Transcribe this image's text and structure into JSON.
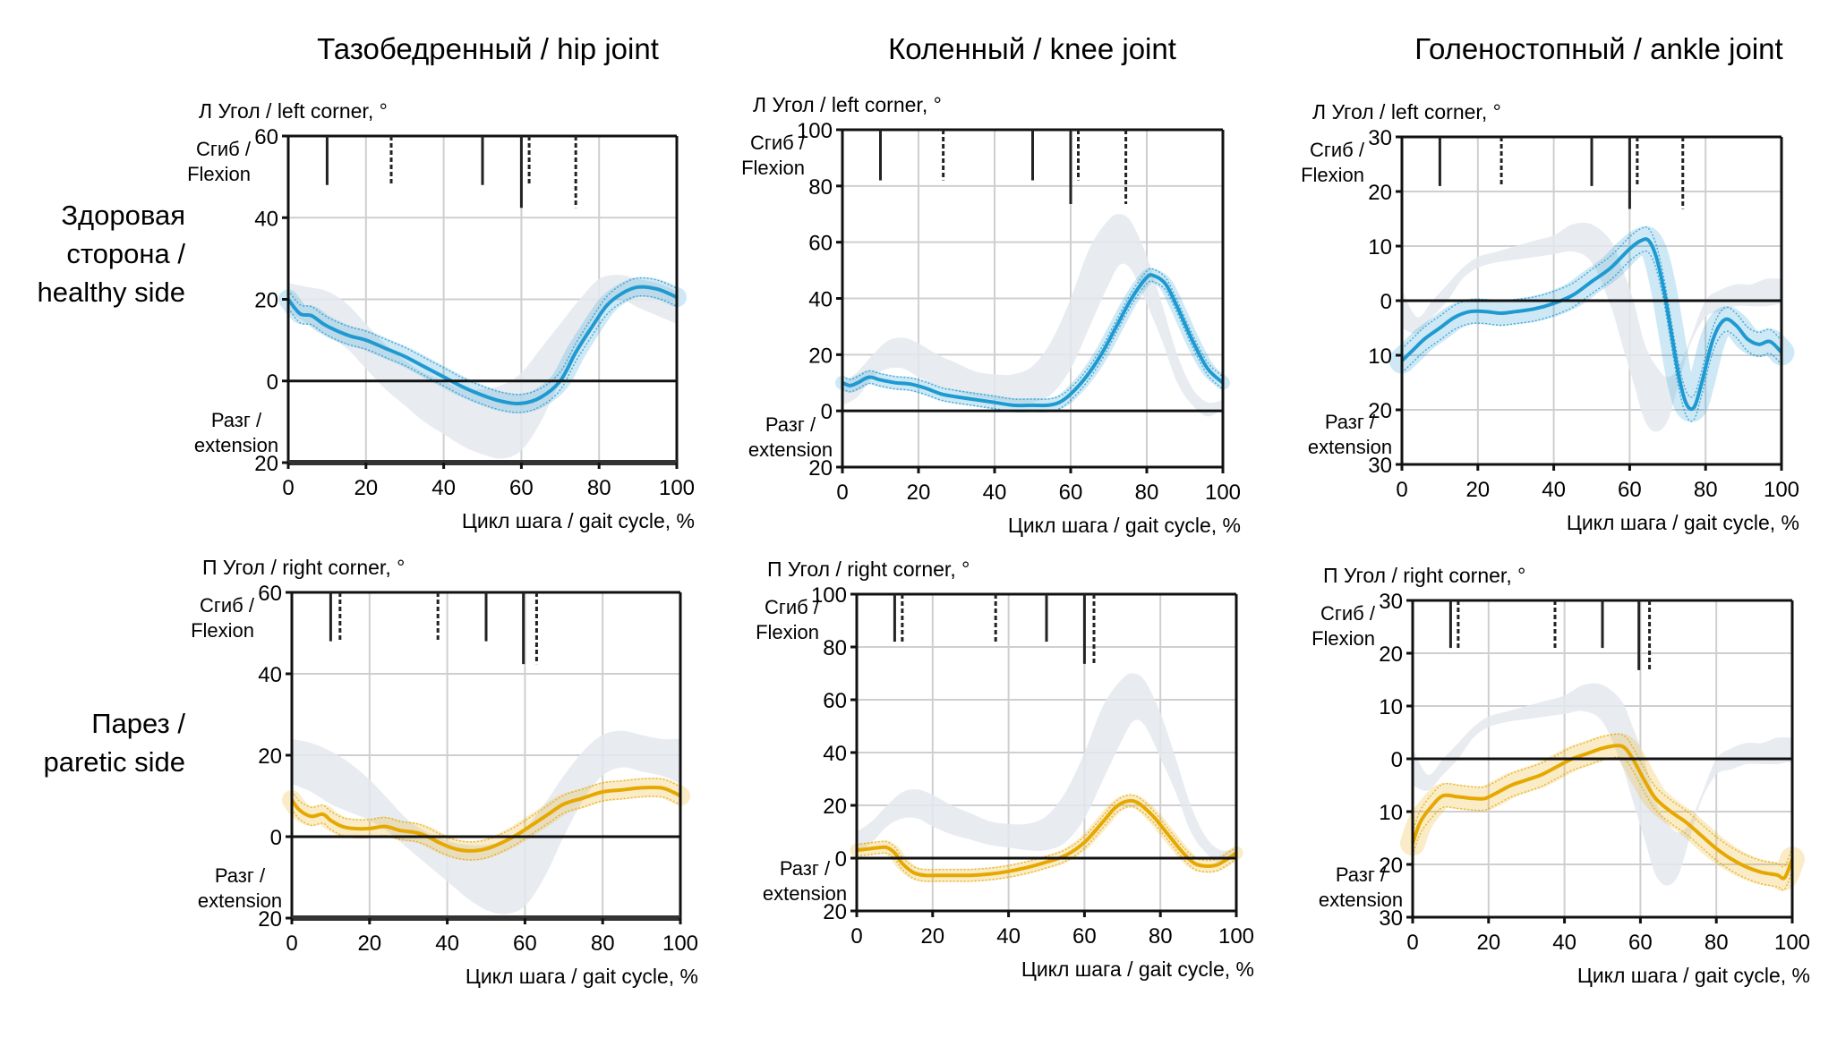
{
  "chart_data": {
    "type": "line",
    "layout": "2 rows x 3 columns small multiples",
    "column_titles": [
      "Тазобедренный / hip joint",
      "Коленный / knee joint",
      "Голеностопный / ankle joint"
    ],
    "row_labels": [
      [
        "Здоровая",
        "сторона /",
        "healthy side"
      ],
      [
        "Парез /",
        "paretic side"
      ]
    ],
    "flexion_label": [
      "Сгиб /",
      "Flexion"
    ],
    "extension_label": [
      "Разг /",
      "extension"
    ],
    "xlabel": "Цикл шага / gait cycle, %",
    "xlim": [
      0,
      100
    ],
    "xticks": [
      0,
      20,
      40,
      60,
      80,
      100
    ],
    "colors": {
      "healthy": "#1f9ad1",
      "paretic": "#e6a800",
      "norm_band": "#e4e9ee",
      "axis": "#111111",
      "grid": "#cfcfcf"
    },
    "panels": [
      {
        "id": "hip-healthy",
        "row": 0,
        "col": 0,
        "ylabel": "Л Угол / left corner, °",
        "ylim": [
          -20,
          60
        ],
        "yticks": [
          60,
          40,
          20,
          0,
          20
        ],
        "ytick_values": [
          60,
          40,
          20,
          0,
          -20
        ],
        "series": "healthy",
        "markers": [
          {
            "x": 10,
            "style": "solid",
            "len": "short"
          },
          {
            "x": 26.5,
            "style": "dashed",
            "len": "short"
          },
          {
            "x": 50,
            "style": "solid",
            "len": "short"
          },
          {
            "x": 60,
            "style": "solid",
            "len": "long"
          },
          {
            "x": 62,
            "style": "dashed",
            "len": "short"
          },
          {
            "x": 74,
            "style": "dashed",
            "len": "long"
          }
        ],
        "x": [
          0,
          3,
          6,
          9,
          12,
          16,
          20,
          25,
          30,
          35,
          40,
          45,
          50,
          55,
          60,
          65,
          70,
          74,
          78,
          82,
          86,
          90,
          95,
          100
        ],
        "mean": [
          20,
          16.5,
          16,
          14,
          12.5,
          11,
          10,
          8,
          6,
          3.5,
          1,
          -1.5,
          -3.5,
          -5,
          -5.5,
          -4,
          0,
          7,
          13,
          18.5,
          21.5,
          23,
          22.5,
          20.5
        ],
        "band_x": [
          0,
          5,
          10,
          15,
          20,
          25,
          30,
          35,
          40,
          45,
          50,
          55,
          60,
          65,
          70,
          75,
          80,
          85,
          90,
          95,
          100
        ],
        "band_low": [
          17,
          14,
          11,
          8,
          3,
          -2,
          -6,
          -10,
          -13,
          -16,
          -18,
          -19,
          -17,
          -10,
          0,
          9,
          17,
          20,
          18,
          16,
          14
        ],
        "band_high": [
          24,
          23,
          22,
          19,
          14,
          9,
          5,
          2,
          0,
          -2,
          -2,
          -1,
          2,
          8,
          14,
          20,
          25,
          26,
          25,
          24,
          22
        ]
      },
      {
        "id": "knee-healthy",
        "row": 0,
        "col": 1,
        "ylabel": "Л Угол / left corner, °",
        "ylim": [
          -20,
          100
        ],
        "yticks": [
          100,
          80,
          60,
          40,
          20,
          0,
          20
        ],
        "ytick_values": [
          100,
          80,
          60,
          40,
          20,
          0,
          -20
        ],
        "series": "healthy",
        "markers": [
          {
            "x": 10,
            "style": "solid",
            "len": "short"
          },
          {
            "x": 26.5,
            "style": "dashed",
            "len": "short"
          },
          {
            "x": 50,
            "style": "solid",
            "len": "short"
          },
          {
            "x": 60,
            "style": "solid",
            "len": "long"
          },
          {
            "x": 62,
            "style": "dashed",
            "len": "short"
          },
          {
            "x": 74.5,
            "style": "dashed",
            "len": "long"
          }
        ],
        "x": [
          0,
          2,
          4,
          7,
          10,
          14,
          18,
          22,
          26,
          30,
          35,
          40,
          45,
          50,
          54,
          57,
          60,
          64,
          68,
          72,
          76,
          80,
          82,
          85,
          88,
          92,
          96,
          100
        ],
        "mean": [
          10,
          9,
          10,
          12,
          11,
          10,
          9.5,
          8,
          6,
          5,
          4,
          3,
          2,
          2,
          2,
          3,
          6,
          12,
          20,
          30,
          40,
          47.5,
          48,
          45,
          37,
          25,
          15,
          10
        ],
        "band_x": [
          0,
          4,
          8,
          12,
          16,
          20,
          25,
          30,
          35,
          40,
          45,
          50,
          55,
          60,
          65,
          70,
          73,
          76,
          80,
          84,
          88,
          92,
          96,
          100
        ],
        "band_low": [
          2,
          5,
          12,
          15,
          15,
          12,
          9,
          7,
          5,
          4,
          3,
          3,
          6,
          15,
          30,
          45,
          52,
          50,
          38,
          25,
          10,
          2,
          -2,
          1
        ],
        "band_high": [
          10,
          14,
          20,
          25,
          26,
          24,
          20,
          17,
          14,
          13,
          13,
          16,
          25,
          40,
          58,
          68,
          70,
          67,
          55,
          38,
          20,
          8,
          3,
          4
        ]
      },
      {
        "id": "ankle-healthy",
        "row": 0,
        "col": 2,
        "ylabel": "Л Угол / left corner, °",
        "ylim": [
          -30,
          30
        ],
        "yticks": [
          30,
          20,
          10,
          0,
          10,
          20,
          30
        ],
        "ytick_values": [
          30,
          20,
          10,
          0,
          -10,
          -20,
          -30
        ],
        "series": "healthy",
        "markers": [
          {
            "x": 10,
            "style": "solid",
            "len": "short"
          },
          {
            "x": 26.2,
            "style": "dashed",
            "len": "short"
          },
          {
            "x": 50,
            "style": "solid",
            "len": "short"
          },
          {
            "x": 60,
            "style": "solid",
            "len": "long"
          },
          {
            "x": 62,
            "style": "dashed",
            "len": "short"
          },
          {
            "x": 74,
            "style": "dashed",
            "len": "long"
          }
        ],
        "x": [
          0,
          3,
          6,
          10,
          14,
          18,
          22,
          26,
          30,
          35,
          40,
          45,
          50,
          55,
          60,
          63,
          65,
          67,
          69,
          71,
          73,
          75,
          77,
          79,
          82,
          85,
          88,
          91,
          94,
          97,
          100
        ],
        "mean": [
          -11,
          -9,
          -7,
          -5,
          -3,
          -2,
          -2,
          -2.3,
          -2,
          -1.5,
          -0.5,
          1,
          3.5,
          6,
          9.5,
          11,
          11,
          8,
          2,
          -6,
          -14,
          -19,
          -19.5,
          -15,
          -7,
          -3.5,
          -4.5,
          -7,
          -8,
          -7.5,
          -9.5
        ],
        "band_x": [
          0,
          4,
          8,
          12,
          16,
          20,
          25,
          30,
          35,
          40,
          45,
          50,
          55,
          58,
          61,
          64,
          67,
          70,
          73,
          76,
          80,
          84,
          88,
          92,
          96,
          100
        ],
        "band_low": [
          -5,
          -6,
          -3,
          0,
          4,
          6,
          7,
          7.5,
          8,
          8.5,
          9,
          7,
          -1,
          -8,
          -15,
          -22,
          -24,
          -22,
          -15,
          -8,
          -3,
          -2,
          -1,
          -1,
          -1,
          -0.5
        ],
        "band_high": [
          2,
          -3,
          0,
          3,
          6,
          8,
          9,
          10,
          11,
          12,
          14,
          14,
          11,
          6,
          0,
          -8,
          -12,
          -14,
          -12,
          -7,
          0,
          2,
          3,
          3,
          4,
          4
        ]
      },
      {
        "id": "hip-paretic",
        "row": 1,
        "col": 0,
        "ylabel": "П Угол / right corner, °",
        "ylim": [
          -20,
          60
        ],
        "yticks": [
          60,
          40,
          20,
          0,
          20
        ],
        "ytick_values": [
          60,
          40,
          20,
          0,
          -20
        ],
        "series": "paretic",
        "markers": [
          {
            "x": 10,
            "style": "solid",
            "len": "short"
          },
          {
            "x": 12.4,
            "style": "dashed",
            "len": "short"
          },
          {
            "x": 37.6,
            "style": "dashed",
            "len": "short"
          },
          {
            "x": 50,
            "style": "solid",
            "len": "short"
          },
          {
            "x": 59.6,
            "style": "solid",
            "len": "long"
          },
          {
            "x": 63,
            "style": "dashed",
            "len": "long"
          }
        ],
        "x": [
          0,
          2,
          5,
          8,
          10,
          13,
          16,
          20,
          24,
          28,
          32,
          35,
          38,
          42,
          46,
          50,
          54,
          58,
          62,
          66,
          70,
          75,
          80,
          85,
          90,
          95,
          98,
          100
        ],
        "mean": [
          9,
          6.5,
          5,
          5.5,
          4,
          2.5,
          2,
          2,
          2.5,
          1.5,
          1,
          0,
          -1.5,
          -3,
          -3.5,
          -3,
          -1.5,
          0.5,
          3,
          5.5,
          8,
          9.5,
          11,
          11.5,
          12,
          12,
          11,
          10
        ],
        "band_x": [
          0,
          5,
          10,
          15,
          20,
          25,
          30,
          35,
          40,
          45,
          50,
          55,
          60,
          65,
          70,
          75,
          80,
          85,
          90,
          95,
          100
        ],
        "band_low": [
          13,
          11,
          8,
          6,
          4,
          1,
          -3,
          -7,
          -11,
          -15,
          -18,
          -19,
          -17,
          -10,
          0,
          9,
          15,
          17,
          16,
          15,
          13
        ],
        "band_high": [
          24,
          23,
          21,
          18,
          14,
          9,
          4,
          1,
          -1,
          -2,
          -2,
          -1,
          2,
          8,
          15,
          21,
          25,
          26,
          25,
          24,
          24
        ]
      },
      {
        "id": "knee-paretic",
        "row": 1,
        "col": 1,
        "ylabel": "П Угол / right corner, °",
        "ylim": [
          -20,
          100
        ],
        "yticks": [
          100,
          80,
          60,
          40,
          20,
          0,
          20
        ],
        "ytick_values": [
          100,
          80,
          60,
          40,
          20,
          0,
          -20
        ],
        "series": "paretic",
        "markers": [
          {
            "x": 10,
            "style": "solid",
            "len": "short"
          },
          {
            "x": 12,
            "style": "dashed",
            "len": "short"
          },
          {
            "x": 36.6,
            "style": "dashed",
            "len": "short"
          },
          {
            "x": 50,
            "style": "solid",
            "len": "short"
          },
          {
            "x": 60,
            "style": "solid",
            "len": "long"
          },
          {
            "x": 62.5,
            "style": "dashed",
            "len": "long"
          }
        ],
        "x": [
          0,
          3,
          6,
          8,
          10,
          12,
          15,
          18,
          22,
          26,
          30,
          35,
          40,
          45,
          50,
          55,
          60,
          65,
          68,
          71,
          74,
          78,
          82,
          86,
          89,
          92,
          95,
          98,
          100
        ],
        "mean": [
          3,
          3.5,
          4,
          4,
          2,
          -2,
          -5.5,
          -6.5,
          -6.5,
          -6.5,
          -6.5,
          -6,
          -5,
          -3.5,
          -1.5,
          1,
          6,
          14,
          19,
          21.5,
          21,
          16,
          9,
          2,
          -2,
          -3,
          -2.5,
          0,
          2
        ],
        "band_x": [
          0,
          4,
          8,
          12,
          16,
          20,
          25,
          30,
          35,
          40,
          45,
          50,
          55,
          60,
          65,
          70,
          73,
          76,
          80,
          84,
          88,
          92,
          96,
          100
        ],
        "band_low": [
          2,
          6,
          12,
          15,
          15,
          12,
          9,
          7,
          5,
          4,
          3,
          3,
          6,
          15,
          30,
          45,
          52,
          50,
          38,
          25,
          10,
          2,
          -2,
          1
        ],
        "band_high": [
          10,
          14,
          20,
          25,
          26,
          24,
          20,
          17,
          14,
          13,
          13,
          16,
          25,
          40,
          58,
          68,
          70,
          67,
          55,
          38,
          20,
          8,
          3,
          4
        ]
      },
      {
        "id": "ankle-paretic",
        "row": 1,
        "col": 2,
        "ylabel": "П Угол / right corner, °",
        "ylim": [
          -30,
          30
        ],
        "yticks": [
          30,
          20,
          10,
          0,
          10,
          20,
          30
        ],
        "ytick_values": [
          30,
          20,
          10,
          0,
          -10,
          -20,
          -30
        ],
        "series": "paretic",
        "markers": [
          {
            "x": 10,
            "style": "solid",
            "len": "short"
          },
          {
            "x": 12,
            "style": "dashed",
            "len": "short"
          },
          {
            "x": 37.5,
            "style": "dashed",
            "len": "short"
          },
          {
            "x": 50,
            "style": "solid",
            "len": "short"
          },
          {
            "x": 59.6,
            "style": "solid",
            "len": "long"
          },
          {
            "x": 62.4,
            "style": "dashed",
            "len": "long"
          }
        ],
        "x": [
          0,
          2,
          5,
          8,
          12,
          16,
          19,
          22,
          26,
          30,
          34,
          38,
          42,
          46,
          50,
          54,
          56,
          58,
          61,
          64,
          68,
          72,
          76,
          80,
          84,
          88,
          92,
          96,
          98,
          100
        ],
        "mean": [
          -16,
          -12,
          -9,
          -7,
          -7.2,
          -7.5,
          -7.5,
          -6.5,
          -5,
          -4,
          -3,
          -1.5,
          0,
          1,
          2,
          2.5,
          2,
          0,
          -4,
          -7.5,
          -10,
          -12,
          -14.5,
          -17,
          -19,
          -20.5,
          -21.5,
          -22,
          -22.5,
          -19
        ],
        "band_x": [
          0,
          4,
          8,
          12,
          16,
          20,
          25,
          30,
          35,
          40,
          45,
          50,
          55,
          58,
          61,
          64,
          67,
          70,
          73,
          76,
          80,
          84,
          88,
          92,
          96,
          100
        ],
        "band_low": [
          -5,
          -6,
          -3,
          0,
          4,
          6,
          7,
          7.5,
          8,
          8.5,
          9,
          7,
          -1,
          -8,
          -15,
          -22,
          -24,
          -22,
          -15,
          -8,
          -3,
          -2,
          -1,
          -1,
          -1,
          -0.5
        ],
        "band_high": [
          2,
          -3,
          0,
          3,
          6,
          8,
          9,
          10,
          11,
          12,
          14,
          14,
          11,
          6,
          0,
          -8,
          -12,
          -14,
          -12,
          -7,
          0,
          2,
          3,
          3,
          4,
          4
        ]
      }
    ]
  }
}
